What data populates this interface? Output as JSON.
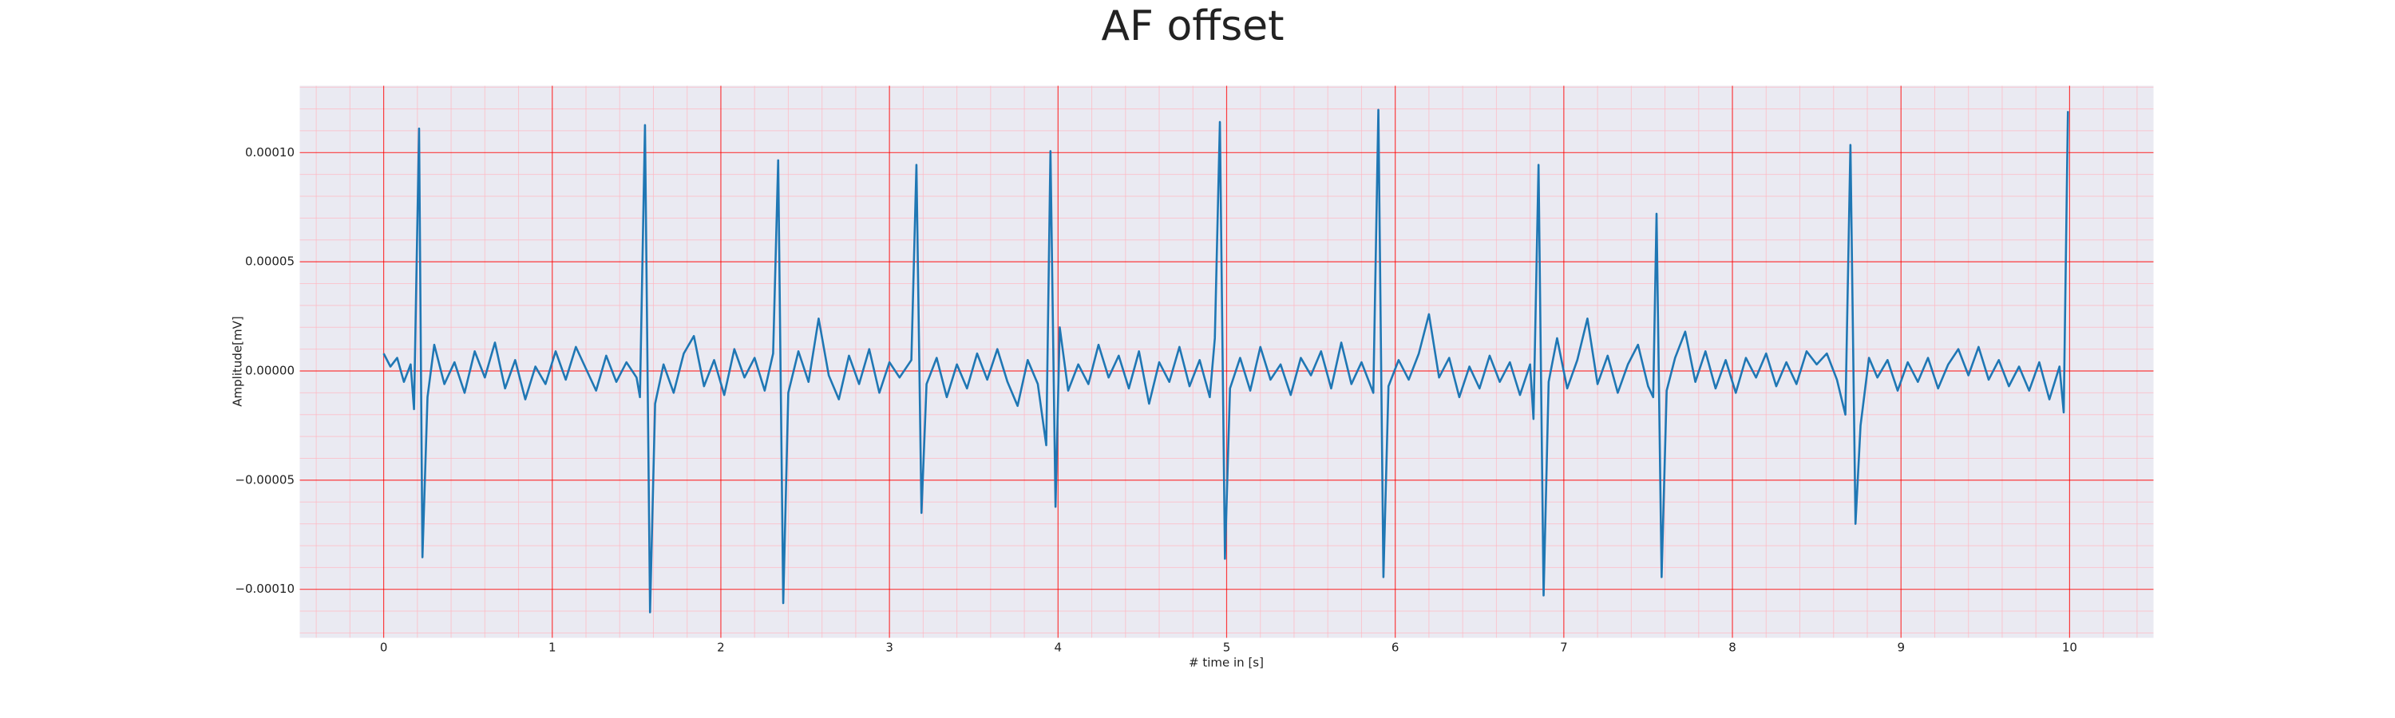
{
  "chart_data": {
    "type": "line",
    "title": "AF offset",
    "xlabel": "# time in [s]",
    "ylabel": "Amplitude[mV]",
    "color": "#1f77b4",
    "grid": true,
    "minor_grid": true,
    "grid_color": "#ff0000",
    "minor_grid_color": "#ffb6c1",
    "background": "#eaeaf2",
    "xlim": [
      -0.5,
      10.5
    ],
    "ylim": [
      -0.0001224,
      0.0001308
    ],
    "xticks": [
      0,
      1,
      2,
      3,
      4,
      5,
      6,
      7,
      8,
      9,
      10
    ],
    "yticks": [
      {
        "value": -0.0001,
        "label": "−0.00010"
      },
      {
        "value": -5e-05,
        "label": "−0.00005"
      },
      {
        "value": 0,
        "label": "0.00000"
      },
      {
        "value": 5e-05,
        "label": "0.00005"
      },
      {
        "value": 0.0001,
        "label": "0.00010"
      }
    ],
    "x": [
      0.0,
      0.04,
      0.08,
      0.12,
      0.16,
      0.18,
      0.21,
      0.23,
      0.26,
      0.3,
      0.36,
      0.42,
      0.48,
      0.54,
      0.6,
      0.66,
      0.72,
      0.78,
      0.84,
      0.9,
      0.96,
      1.02,
      1.08,
      1.14,
      1.2,
      1.26,
      1.32,
      1.38,
      1.44,
      1.5,
      1.52,
      1.55,
      1.58,
      1.61,
      1.66,
      1.72,
      1.78,
      1.84,
      1.9,
      1.96,
      2.02,
      2.08,
      2.14,
      2.2,
      2.26,
      2.31,
      2.34,
      2.37,
      2.4,
      2.46,
      2.52,
      2.58,
      2.64,
      2.7,
      2.76,
      2.82,
      2.88,
      2.94,
      3.0,
      3.06,
      3.13,
      3.16,
      3.19,
      3.22,
      3.28,
      3.34,
      3.4,
      3.46,
      3.52,
      3.58,
      3.64,
      3.7,
      3.76,
      3.82,
      3.88,
      3.93,
      3.955,
      3.985,
      4.01,
      4.06,
      4.12,
      4.18,
      4.24,
      4.3,
      4.36,
      4.42,
      4.48,
      4.54,
      4.6,
      4.66,
      4.72,
      4.78,
      4.84,
      4.9,
      4.93,
      4.96,
      4.99,
      5.02,
      5.08,
      5.14,
      5.2,
      5.26,
      5.32,
      5.38,
      5.44,
      5.5,
      5.56,
      5.62,
      5.68,
      5.74,
      5.8,
      5.87,
      5.9,
      5.93,
      5.96,
      6.02,
      6.08,
      6.14,
      6.2,
      6.26,
      6.32,
      6.38,
      6.44,
      6.5,
      6.56,
      6.62,
      6.68,
      6.74,
      6.8,
      6.82,
      6.85,
      6.88,
      6.91,
      6.96,
      7.02,
      7.08,
      7.14,
      7.2,
      7.26,
      7.32,
      7.38,
      7.44,
      7.5,
      7.53,
      7.55,
      7.58,
      7.61,
      7.66,
      7.72,
      7.78,
      7.84,
      7.9,
      7.96,
      8.02,
      8.08,
      8.14,
      8.2,
      8.26,
      8.32,
      8.38,
      8.44,
      8.5,
      8.56,
      8.62,
      8.67,
      8.7,
      8.73,
      8.76,
      8.81,
      8.86,
      8.92,
      8.98,
      9.04,
      9.1,
      9.16,
      9.22,
      9.28,
      9.34,
      9.4,
      9.46,
      9.52,
      9.58,
      9.64,
      9.7,
      9.76,
      9.82,
      9.88,
      9.94,
      9.965,
      9.99
    ],
    "values": [
      8e-06,
      2e-06,
      6e-06,
      -5e-06,
      3e-06,
      -1.75e-05,
      0.000111,
      -8.53e-05,
      -1.2e-05,
      1.2e-05,
      -6e-06,
      4e-06,
      -1e-05,
      9e-06,
      -3e-06,
      1.3e-05,
      -8e-06,
      5e-06,
      -1.3e-05,
      2e-06,
      -6e-06,
      9e-06,
      -4e-06,
      1.1e-05,
      1e-06,
      -9e-06,
      7e-06,
      -5e-06,
      4e-06,
      -3e-06,
      -1.2e-05,
      0.0001126,
      -0.0001105,
      -1.5e-05,
      3e-06,
      -1e-05,
      8e-06,
      1.6e-05,
      -7e-06,
      5e-06,
      -1.1e-05,
      1e-05,
      -3e-06,
      6e-06,
      -9e-06,
      8e-06,
      9.65e-05,
      -0.0001063,
      -1e-05,
      9e-06,
      -5e-06,
      2.4e-05,
      -2e-06,
      -1.3e-05,
      7e-06,
      -6e-06,
      1e-05,
      -1e-05,
      4e-06,
      -3e-06,
      5e-06,
      9.44e-05,
      -6.5e-05,
      -6e-06,
      6e-06,
      -1.2e-05,
      3e-06,
      -8e-06,
      8e-06,
      -4e-06,
      1e-05,
      -5e-06,
      -1.6e-05,
      5e-06,
      -6e-06,
      -3.4e-05,
      0.0001007,
      -6.22e-05,
      2e-05,
      -9e-06,
      3e-06,
      -6e-06,
      1.2e-05,
      -3e-06,
      7e-06,
      -8e-06,
      9e-06,
      -1.5e-05,
      4e-06,
      -5e-06,
      1.1e-05,
      -7e-06,
      5e-06,
      -1.2e-05,
      1.5e-05,
      0.000114,
      -8.6e-05,
      -8e-06,
      6e-06,
      -9e-06,
      1.1e-05,
      -4e-06,
      3e-06,
      -1.1e-05,
      6e-06,
      -2e-06,
      9e-06,
      -8e-06,
      1.3e-05,
      -6e-06,
      4e-06,
      -1e-05,
      0.0001196,
      -9.44e-05,
      -7e-06,
      5e-06,
      -4e-06,
      8e-06,
      2.6e-05,
      -3e-06,
      6e-06,
      -1.2e-05,
      2e-06,
      -8e-06,
      7e-06,
      -5e-06,
      4e-06,
      -1.1e-05,
      3e-06,
      -2.2e-05,
      9.44e-05,
      -0.0001028,
      -5e-06,
      1.5e-05,
      -8e-06,
      5e-06,
      2.4e-05,
      -6e-06,
      7e-06,
      -1e-05,
      3e-06,
      1.2e-05,
      -7e-06,
      -1.2e-05,
      7.2e-05,
      -9.44e-05,
      -9e-06,
      6e-06,
      1.8e-05,
      -5e-06,
      9e-06,
      -8e-06,
      5e-06,
      -1e-05,
      6e-06,
      -3e-06,
      8e-06,
      -7e-06,
      4e-06,
      -6e-06,
      9e-06,
      3e-06,
      8e-06,
      -4e-06,
      -2e-05,
      0.0001035,
      -7e-05,
      -2.5e-05,
      6e-06,
      -3e-06,
      5e-06,
      -9e-06,
      4e-06,
      -5e-06,
      6e-06,
      -8e-06,
      3e-06,
      1e-05,
      -2e-06,
      1.1e-05,
      -4e-06,
      5e-06,
      -7e-06,
      2e-06,
      -9e-06,
      4e-06,
      -1.3e-05,
      2e-06,
      -1.9e-05,
      0.000119
    ]
  }
}
